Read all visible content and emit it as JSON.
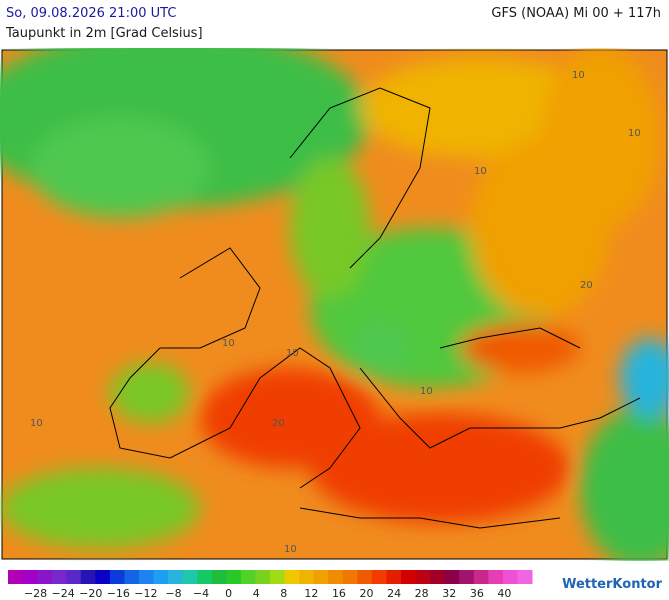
{
  "header": {
    "left": "So, 09.08.2026 21:00 UTC",
    "right": "GFS (NOAA) Mi 00 + 117h",
    "subtitle": "Taupunkt in 2m [Grad Celsius]"
  },
  "map": {
    "contour_labels": [
      "10",
      "10",
      "10",
      "10",
      "10",
      "10",
      "20",
      "20",
      "10",
      "10"
    ]
  },
  "legend": {
    "colors": [
      "#b400b4",
      "#a000c8",
      "#8c14c8",
      "#7828c8",
      "#5a28c8",
      "#2814b4",
      "#0a00c8",
      "#0a3cdc",
      "#1464e6",
      "#1e82f0",
      "#1ea0f0",
      "#28b4dc",
      "#1ec8aa",
      "#14c864",
      "#1ebe3c",
      "#28c828",
      "#50d228",
      "#78d21e",
      "#a0dc14",
      "#f0c800",
      "#f0b400",
      "#f0a000",
      "#f08c00",
      "#f07800",
      "#f05a00",
      "#f03c00",
      "#e61e00",
      "#d20000",
      "#be0014",
      "#a00028",
      "#8c0046",
      "#a0146e",
      "#c8288c",
      "#e63cb4",
      "#f050d2",
      "#f064e6"
    ],
    "labels": [
      "−28",
      "−24",
      "−20",
      "−16",
      "−12",
      "−8",
      "−4",
      "0",
      "4",
      "8",
      "12",
      "16",
      "20",
      "24",
      "28",
      "32",
      "36",
      "40"
    ]
  },
  "logo": "WetterKontor"
}
